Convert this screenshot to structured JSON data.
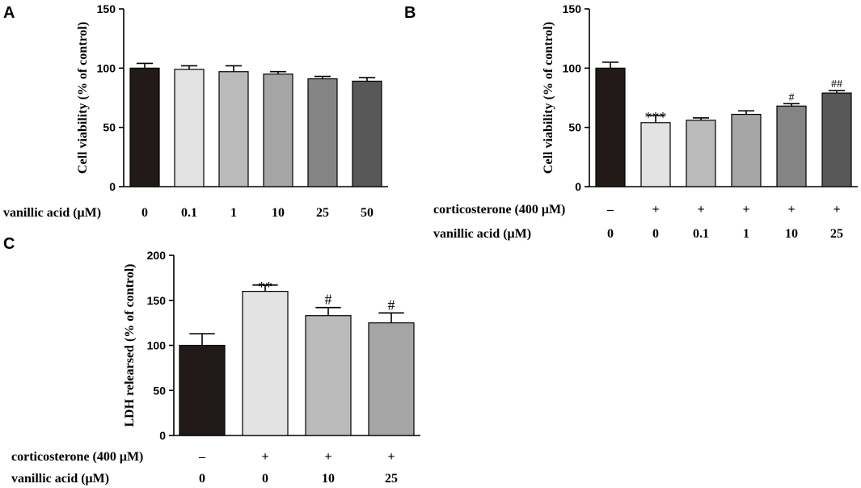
{
  "chart_data": [
    {
      "panel": "A",
      "type": "bar",
      "ylabel": "Cell viability (% of control)",
      "ylim": [
        0,
        150
      ],
      "yticks": [
        0,
        50,
        100,
        150
      ],
      "rows": [
        {
          "label": "vanillic acid (μM)",
          "values": [
            "0",
            "0.1",
            "1",
            "10",
            "25",
            "50"
          ]
        }
      ],
      "values": [
        100,
        99,
        97,
        95,
        91,
        89
      ],
      "errors": [
        4,
        3,
        5,
        2,
        2,
        3
      ],
      "colors": [
        "#211a18",
        "#e2e3e2",
        "#bababa",
        "#a5a5a5",
        "#848484",
        "#585858"
      ],
      "annotations": [
        "",
        "",
        "",
        "",
        "",
        ""
      ]
    },
    {
      "panel": "B",
      "type": "bar",
      "ylabel": "Cell viability (% of control)",
      "ylim": [
        0,
        150
      ],
      "yticks": [
        0,
        50,
        100,
        150
      ],
      "rows": [
        {
          "label": "corticosterone (400 μM)",
          "values": [
            "–",
            "+",
            "+",
            "+",
            "+",
            "+"
          ]
        },
        {
          "label": "vanillic acid (μM)",
          "values": [
            "0",
            "0",
            "0.1",
            "1",
            "10",
            "25"
          ]
        }
      ],
      "values": [
        100,
        54,
        56,
        61,
        68,
        79
      ],
      "errors": [
        5,
        6,
        2,
        3,
        2,
        2
      ],
      "colors": [
        "#211a18",
        "#e2e3e2",
        "#bababa",
        "#a5a5a5",
        "#848484",
        "#585858"
      ],
      "annotations": [
        "",
        "***",
        "",
        "",
        "#",
        "##"
      ]
    },
    {
      "panel": "C",
      "type": "bar",
      "ylabel": "LDH relearsed (% of control)",
      "ylim": [
        0,
        200
      ],
      "yticks": [
        0,
        50,
        100,
        150,
        200
      ],
      "rows": [
        {
          "label": "corticosterone (400 μM)",
          "values": [
            "–",
            "+",
            "+",
            "+"
          ]
        },
        {
          "label": "vanillic acid (μM)",
          "values": [
            "0",
            "0",
            "10",
            "25"
          ]
        }
      ],
      "values": [
        100,
        160,
        133,
        125
      ],
      "errors": [
        13,
        7,
        9,
        11
      ],
      "colors": [
        "#211a18",
        "#e2e3e2",
        "#bababa",
        "#a5a5a5"
      ],
      "annotations": [
        "",
        "**",
        "#",
        "#"
      ]
    }
  ]
}
